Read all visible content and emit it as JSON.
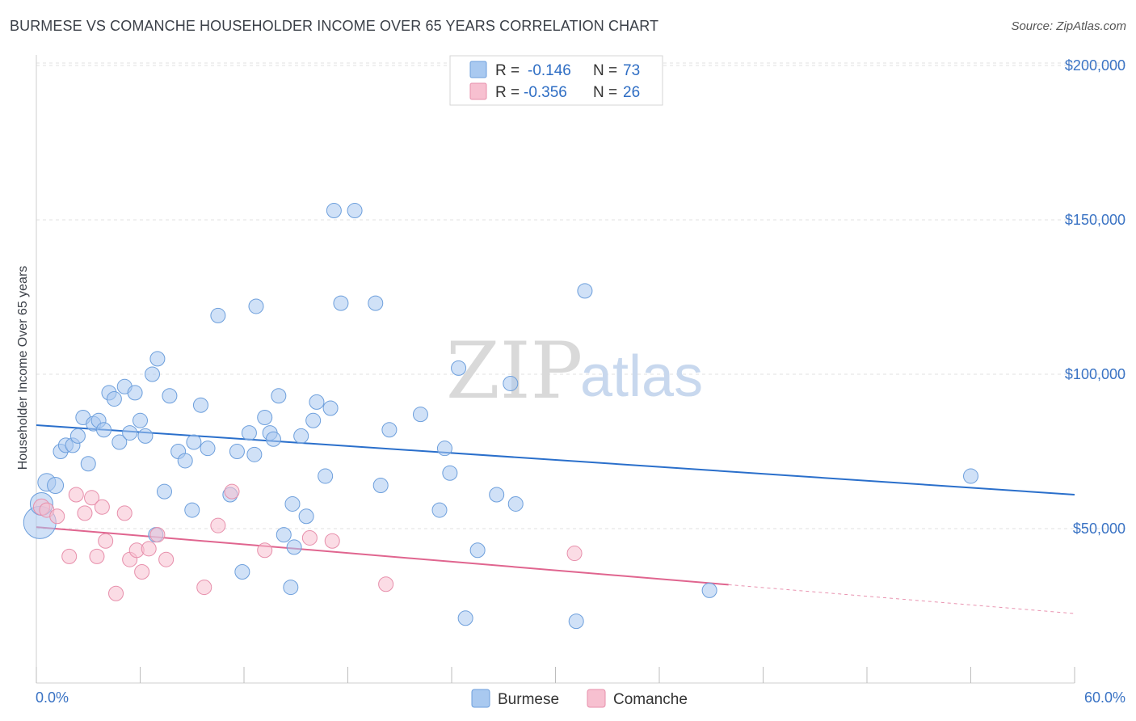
{
  "title": "BURMESE VS COMANCHE HOUSEHOLDER INCOME OVER 65 YEARS CORRELATION CHART",
  "source": "Source: ZipAtlas.com",
  "watermark": {
    "zip": "ZIP",
    "atlas": "atlas"
  },
  "colors": {
    "burmese_fill": "#a9c9f0",
    "burmese_stroke": "#6d9fdc",
    "burmese_line": "#2a6fcb",
    "comanche_fill": "#f7c0d0",
    "comanche_stroke": "#e78fab",
    "comanche_line": "#e0658f",
    "grid": "#e1e1e1",
    "axis_text": "#3a73c4"
  },
  "legend": {
    "rows": [
      {
        "r_label": "R =",
        "r_value": "-0.146",
        "n_label": "N =",
        "n_value": "73"
      },
      {
        "r_label": "R =",
        "r_value": "-0.356",
        "n_label": "N =",
        "n_value": "26"
      }
    ]
  },
  "chart_data": {
    "type": "scatter",
    "title": "BURMESE VS COMANCHE HOUSEHOLDER INCOME OVER 65 YEARS CORRELATION CHART",
    "xlabel": "",
    "ylabel": "Householder Income Over 65 years",
    "xlim": [
      0,
      60
    ],
    "ylim": [
      0,
      210000
    ],
    "x_tick_labels": [
      "0.0%",
      "60.0%"
    ],
    "y_ticks": [
      50000,
      100000,
      150000,
      200000
    ],
    "y_tick_labels": [
      "$50,000",
      "$100,000",
      "$150,000",
      "$200,000"
    ],
    "grid": true,
    "legend_position": "top-center",
    "series": [
      {
        "name": "Burmese",
        "r": -0.146,
        "n": 73,
        "trend": {
          "x0": 0,
          "y0": 83500,
          "x1": 60,
          "y1": 61000,
          "solid_until": 60
        },
        "points": [
          [
            0.2,
            52000,
            20
          ],
          [
            0.3,
            58000,
            14
          ],
          [
            0.6,
            65000,
            11
          ],
          [
            1.1,
            64000,
            10
          ],
          [
            1.4,
            75000,
            9
          ],
          [
            1.7,
            77000,
            9
          ],
          [
            2.1,
            77000,
            9
          ],
          [
            2.4,
            80000,
            9
          ],
          [
            2.7,
            86000,
            9
          ],
          [
            3.0,
            71000,
            9
          ],
          [
            3.3,
            84000,
            9
          ],
          [
            3.6,
            85000,
            9
          ],
          [
            3.9,
            82000,
            9
          ],
          [
            4.2,
            94000,
            9
          ],
          [
            4.5,
            92000,
            9
          ],
          [
            4.8,
            78000,
            9
          ],
          [
            5.1,
            96000,
            9
          ],
          [
            5.4,
            81000,
            9
          ],
          [
            5.7,
            94000,
            9
          ],
          [
            6.0,
            85000,
            9
          ],
          [
            6.3,
            80000,
            9
          ],
          [
            6.7,
            100000,
            9
          ],
          [
            7.0,
            105000,
            9
          ],
          [
            7.4,
            62000,
            9
          ],
          [
            7.7,
            93000,
            9
          ],
          [
            8.2,
            75000,
            9
          ],
          [
            8.6,
            72000,
            9
          ],
          [
            9.1,
            78000,
            9
          ],
          [
            9.5,
            90000,
            9
          ],
          [
            9.9,
            76000,
            9
          ],
          [
            10.5,
            119000,
            9
          ],
          [
            11.2,
            61000,
            9
          ],
          [
            11.6,
            75000,
            9
          ],
          [
            11.9,
            36000,
            9
          ],
          [
            12.3,
            81000,
            9
          ],
          [
            12.7,
            122000,
            9
          ],
          [
            13.2,
            86000,
            9
          ],
          [
            13.5,
            81000,
            9
          ],
          [
            13.7,
            79000,
            9
          ],
          [
            14.0,
            93000,
            9
          ],
          [
            14.3,
            48000,
            9
          ],
          [
            14.7,
            31000,
            9
          ],
          [
            14.9,
            44000,
            9
          ],
          [
            15.3,
            80000,
            9
          ],
          [
            15.6,
            54000,
            9
          ],
          [
            16.0,
            85000,
            9
          ],
          [
            16.2,
            91000,
            9
          ],
          [
            16.7,
            67000,
            9
          ],
          [
            17.0,
            89000,
            9
          ],
          [
            17.2,
            153000,
            9
          ],
          [
            17.6,
            123000,
            9
          ],
          [
            19.6,
            123000,
            9
          ],
          [
            19.9,
            64000,
            9
          ],
          [
            20.4,
            82000,
            9
          ],
          [
            22.2,
            87000,
            9
          ],
          [
            23.3,
            56000,
            9
          ],
          [
            23.6,
            76000,
            9
          ],
          [
            23.9,
            68000,
            9
          ],
          [
            24.4,
            102000,
            9
          ],
          [
            24.8,
            21000,
            9
          ],
          [
            25.5,
            43000,
            9
          ],
          [
            26.6,
            61000,
            9
          ],
          [
            27.4,
            97000,
            9
          ],
          [
            27.7,
            58000,
            9
          ],
          [
            31.2,
            20000,
            9
          ],
          [
            31.7,
            127000,
            9
          ],
          [
            38.9,
            30000,
            9
          ],
          [
            54.0,
            67000,
            9
          ],
          [
            6.9,
            48000,
            9
          ],
          [
            9.0,
            56000,
            9
          ],
          [
            12.6,
            74000,
            9
          ],
          [
            14.8,
            58000,
            9
          ],
          [
            18.4,
            153000,
            9
          ]
        ]
      },
      {
        "name": "Comanche",
        "r": -0.356,
        "n": 26,
        "trend": {
          "x0": 0,
          "y0": 50500,
          "x1": 60,
          "y1": 22500,
          "solid_until": 40
        },
        "points": [
          [
            0.3,
            57000,
            10
          ],
          [
            0.6,
            56000,
            9
          ],
          [
            1.2,
            54000,
            9
          ],
          [
            1.9,
            41000,
            9
          ],
          [
            2.3,
            61000,
            9
          ],
          [
            2.8,
            55000,
            9
          ],
          [
            3.2,
            60000,
            9
          ],
          [
            3.5,
            41000,
            9
          ],
          [
            3.8,
            57000,
            9
          ],
          [
            4.0,
            46000,
            9
          ],
          [
            4.6,
            29000,
            9
          ],
          [
            5.1,
            55000,
            9
          ],
          [
            5.4,
            40000,
            9
          ],
          [
            5.8,
            43000,
            9
          ],
          [
            6.1,
            36000,
            9
          ],
          [
            7.0,
            48000,
            9
          ],
          [
            7.5,
            40000,
            9
          ],
          [
            9.7,
            31000,
            9
          ],
          [
            10.5,
            51000,
            9
          ],
          [
            11.3,
            62000,
            9
          ],
          [
            13.2,
            43000,
            9
          ],
          [
            15.8,
            47000,
            9
          ],
          [
            17.1,
            46000,
            9
          ],
          [
            20.2,
            32000,
            9
          ],
          [
            31.1,
            42000,
            9
          ],
          [
            6.5,
            43500,
            9
          ]
        ]
      }
    ]
  },
  "bottom_legend": {
    "items": [
      "Burmese",
      "Comanche"
    ]
  }
}
